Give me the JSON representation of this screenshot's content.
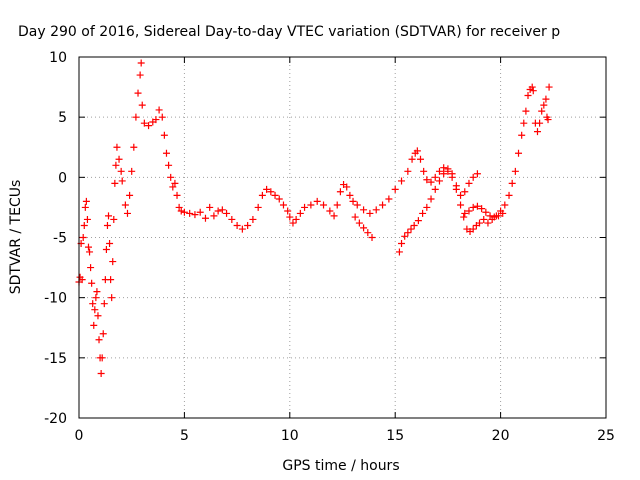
{
  "chart_data": {
    "type": "scatter",
    "title": "Day 290 of 2016, Sidereal Day-to-day VTEC variation (SDTVAR) for receiver p",
    "xlabel": "GPS time / hours",
    "ylabel": "SDTVAR / TECUs",
    "xlim": [
      0,
      25
    ],
    "ylim": [
      -20,
      10
    ],
    "x_ticks": [
      0,
      5,
      10,
      15,
      20,
      25
    ],
    "y_ticks": [
      -20,
      -15,
      -10,
      -5,
      0,
      5,
      10
    ],
    "x_tick_labels": [
      "0",
      "5",
      "10",
      "15",
      "20",
      "25"
    ],
    "y_tick_labels": [
      "-20",
      "-15",
      "-10",
      "-5",
      "0",
      "5",
      "10"
    ],
    "grid": true,
    "marker": "+",
    "color": "#ff0000",
    "series": [
      {
        "points": [
          [
            0.0,
            -8.7
          ],
          [
            0.05,
            -8.3
          ],
          [
            0.1,
            -5.5
          ],
          [
            0.15,
            -8.5
          ],
          [
            0.2,
            -5.0
          ],
          [
            0.25,
            -4.0
          ],
          [
            0.3,
            -2.5
          ],
          [
            0.35,
            -2.0
          ],
          [
            0.4,
            -3.5
          ],
          [
            0.45,
            -5.8
          ],
          [
            0.5,
            -6.2
          ],
          [
            0.55,
            -7.5
          ],
          [
            0.6,
            -8.8
          ],
          [
            0.65,
            -10.5
          ],
          [
            0.7,
            -12.3
          ],
          [
            0.75,
            -11.0
          ],
          [
            0.8,
            -10.0
          ],
          [
            0.85,
            -9.5
          ],
          [
            0.9,
            -11.5
          ],
          [
            0.95,
            -13.5
          ],
          [
            1.0,
            -15.0
          ],
          [
            1.05,
            -16.3
          ],
          [
            1.1,
            -15.0
          ],
          [
            1.15,
            -13.0
          ],
          [
            1.2,
            -10.5
          ],
          [
            1.25,
            -8.5
          ],
          [
            1.3,
            -6.0
          ],
          [
            1.35,
            -4.0
          ],
          [
            1.4,
            -3.2
          ],
          [
            1.45,
            -5.5
          ],
          [
            1.5,
            -8.5
          ],
          [
            1.55,
            -10.0
          ],
          [
            1.6,
            -7.0
          ],
          [
            1.65,
            -3.5
          ],
          [
            1.7,
            -0.5
          ],
          [
            1.75,
            1.0
          ],
          [
            1.8,
            2.5
          ],
          [
            1.9,
            1.5
          ],
          [
            2.0,
            0.5
          ],
          [
            2.05,
            -0.3
          ],
          [
            2.2,
            -2.3
          ],
          [
            2.3,
            -3.0
          ],
          [
            2.4,
            -1.5
          ],
          [
            2.5,
            0.5
          ],
          [
            2.6,
            2.5
          ],
          [
            2.7,
            5.0
          ],
          [
            2.8,
            7.0
          ],
          [
            2.9,
            8.5
          ],
          [
            2.95,
            9.5
          ],
          [
            3.0,
            6.0
          ],
          [
            3.1,
            4.5
          ],
          [
            3.3,
            4.3
          ],
          [
            3.5,
            4.6
          ],
          [
            3.65,
            4.8
          ],
          [
            3.8,
            5.6
          ],
          [
            3.95,
            5.0
          ],
          [
            4.05,
            3.5
          ],
          [
            4.15,
            2.0
          ],
          [
            4.25,
            1.0
          ],
          [
            4.35,
            0.0
          ],
          [
            4.45,
            -0.8
          ],
          [
            4.55,
            -0.5
          ],
          [
            4.65,
            -1.5
          ],
          [
            4.75,
            -2.5
          ],
          [
            4.85,
            -2.8
          ],
          [
            5.0,
            -2.9
          ],
          [
            5.25,
            -3.0
          ],
          [
            5.5,
            -3.1
          ],
          [
            5.75,
            -2.9
          ],
          [
            6.0,
            -3.4
          ],
          [
            6.2,
            -2.5
          ],
          [
            6.4,
            -3.2
          ],
          [
            6.6,
            -2.8
          ],
          [
            6.8,
            -2.7
          ],
          [
            7.0,
            -3.0
          ],
          [
            7.25,
            -3.5
          ],
          [
            7.5,
            -4.0
          ],
          [
            7.75,
            -4.3
          ],
          [
            8.0,
            -4.0
          ],
          [
            8.25,
            -3.5
          ],
          [
            8.5,
            -2.5
          ],
          [
            8.7,
            -1.5
          ],
          [
            8.9,
            -1.0
          ],
          [
            9.1,
            -1.2
          ],
          [
            9.3,
            -1.5
          ],
          [
            9.5,
            -1.8
          ],
          [
            9.7,
            -2.3
          ],
          [
            9.9,
            -2.8
          ],
          [
            10.0,
            -3.3
          ],
          [
            10.15,
            -3.8
          ],
          [
            10.3,
            -3.5
          ],
          [
            10.5,
            -3.0
          ],
          [
            10.7,
            -2.5
          ],
          [
            11.0,
            -2.3
          ],
          [
            11.3,
            -2.0
          ],
          [
            11.6,
            -2.3
          ],
          [
            11.9,
            -2.8
          ],
          [
            12.1,
            -3.2
          ],
          [
            12.25,
            -2.3
          ],
          [
            12.4,
            -1.2
          ],
          [
            12.55,
            -0.6
          ],
          [
            12.7,
            -0.8
          ],
          [
            12.85,
            -1.5
          ],
          [
            13.0,
            -2.0
          ],
          [
            13.2,
            -2.3
          ],
          [
            13.5,
            -2.7
          ],
          [
            13.8,
            -3.0
          ],
          [
            14.1,
            -2.7
          ],
          [
            14.4,
            -2.3
          ],
          [
            14.7,
            -1.8
          ],
          [
            15.0,
            -1.0
          ],
          [
            15.3,
            -0.3
          ],
          [
            15.6,
            0.5
          ],
          [
            15.8,
            1.5
          ],
          [
            15.95,
            2.0
          ],
          [
            16.05,
            2.2
          ],
          [
            16.2,
            1.5
          ],
          [
            16.35,
            0.5
          ],
          [
            16.5,
            -0.2
          ],
          [
            16.7,
            -0.4
          ],
          [
            16.9,
            0.0
          ],
          [
            17.1,
            0.5
          ],
          [
            17.3,
            0.8
          ],
          [
            17.5,
            0.5
          ],
          [
            17.7,
            0.0
          ],
          [
            17.9,
            -1.0
          ],
          [
            18.1,
            -1.5
          ],
          [
            18.3,
            -1.2
          ],
          [
            18.5,
            -0.5
          ],
          [
            18.7,
            0.0
          ],
          [
            18.9,
            0.3
          ],
          [
            13.1,
            -3.3
          ],
          [
            13.3,
            -3.8
          ],
          [
            13.5,
            -4.2
          ],
          [
            13.7,
            -4.6
          ],
          [
            13.9,
            -5.0
          ],
          [
            15.2,
            -6.2
          ],
          [
            15.3,
            -5.5
          ],
          [
            15.45,
            -4.9
          ],
          [
            15.6,
            -4.6
          ],
          [
            15.75,
            -4.3
          ],
          [
            15.9,
            -4.0
          ],
          [
            16.1,
            -3.6
          ],
          [
            16.3,
            -3.0
          ],
          [
            16.5,
            -2.5
          ],
          [
            16.7,
            -1.8
          ],
          [
            16.9,
            -1.0
          ],
          [
            17.1,
            -0.3
          ],
          [
            17.3,
            0.3
          ],
          [
            17.5,
            0.7
          ],
          [
            17.7,
            0.3
          ],
          [
            17.9,
            -0.7
          ],
          [
            18.1,
            -2.3
          ],
          [
            18.25,
            -3.3
          ],
          [
            18.4,
            -4.3
          ],
          [
            18.55,
            -4.5
          ],
          [
            18.7,
            -4.3
          ],
          [
            18.85,
            -4.0
          ],
          [
            19.0,
            -3.8
          ],
          [
            19.2,
            -3.5
          ],
          [
            19.4,
            -3.8
          ],
          [
            19.6,
            -3.5
          ],
          [
            19.8,
            -3.2
          ],
          [
            20.0,
            -2.8
          ],
          [
            20.2,
            -2.3
          ],
          [
            20.4,
            -1.5
          ],
          [
            20.55,
            -0.5
          ],
          [
            20.7,
            0.5
          ],
          [
            20.85,
            2.0
          ],
          [
            21.0,
            3.5
          ],
          [
            21.1,
            4.5
          ],
          [
            21.2,
            5.5
          ],
          [
            21.3,
            6.8
          ],
          [
            21.4,
            7.3
          ],
          [
            21.5,
            7.5
          ],
          [
            21.55,
            7.2
          ],
          [
            18.3,
            -3.0
          ],
          [
            18.5,
            -2.8
          ],
          [
            18.7,
            -2.5
          ],
          [
            18.9,
            -2.4
          ],
          [
            19.1,
            -2.6
          ],
          [
            19.3,
            -2.9
          ],
          [
            19.5,
            -3.2
          ],
          [
            19.7,
            -3.3
          ],
          [
            19.9,
            -3.2
          ],
          [
            20.1,
            -3.0
          ],
          [
            21.65,
            4.5
          ],
          [
            21.75,
            3.8
          ],
          [
            21.85,
            4.5
          ],
          [
            21.95,
            5.5
          ],
          [
            22.05,
            6.0
          ],
          [
            22.15,
            6.5
          ],
          [
            22.2,
            5.0
          ],
          [
            22.25,
            4.8
          ],
          [
            22.3,
            7.5
          ]
        ]
      }
    ]
  }
}
